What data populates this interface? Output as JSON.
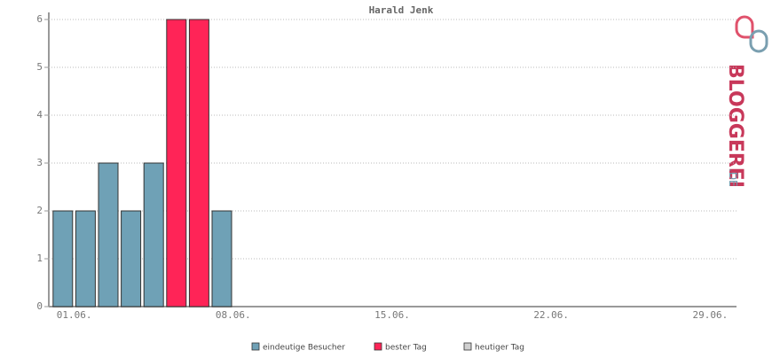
{
  "chart_data": {
    "type": "bar",
    "title": "Harald Jenk",
    "categories": [
      "01.06.",
      null,
      null,
      null,
      null,
      null,
      null,
      "08.06.",
      null,
      null,
      null,
      null,
      null,
      null,
      "15.06.",
      null,
      null,
      null,
      null,
      null,
      null,
      "22.06.",
      null,
      null,
      null,
      null,
      null,
      null,
      "29.06.",
      null
    ],
    "series": [
      {
        "name": "eindeutige Besucher",
        "color": "#6fa1b6",
        "values": [
          2,
          2,
          3,
          2,
          3,
          null,
          null,
          2,
          null,
          null,
          null,
          null,
          null,
          null,
          null,
          null,
          null,
          null,
          null,
          null,
          null,
          null,
          null,
          null,
          null,
          null,
          null,
          null,
          null,
          null
        ]
      },
      {
        "name": "bester Tag",
        "color": "#ff2457",
        "values": [
          null,
          null,
          null,
          null,
          null,
          6,
          6,
          null,
          null,
          null,
          null,
          null,
          null,
          null,
          null,
          null,
          null,
          null,
          null,
          null,
          null,
          null,
          null,
          null,
          null,
          null,
          null,
          null,
          null,
          null
        ]
      },
      {
        "name": "heutiger Tag",
        "color": "#d0d0d0",
        "values": [
          null,
          null,
          null,
          null,
          null,
          null,
          null,
          null,
          null,
          null,
          null,
          null,
          null,
          null,
          null,
          null,
          null,
          null,
          null,
          null,
          null,
          null,
          null,
          null,
          null,
          null,
          null,
          null,
          null,
          null
        ]
      }
    ],
    "ylim": [
      0,
      6
    ],
    "yticks": [
      0,
      1,
      2,
      3,
      4,
      5,
      6
    ],
    "grid": true
  },
  "logo": {
    "text": "BLOGGEREI",
    "suffix": ".DE"
  }
}
